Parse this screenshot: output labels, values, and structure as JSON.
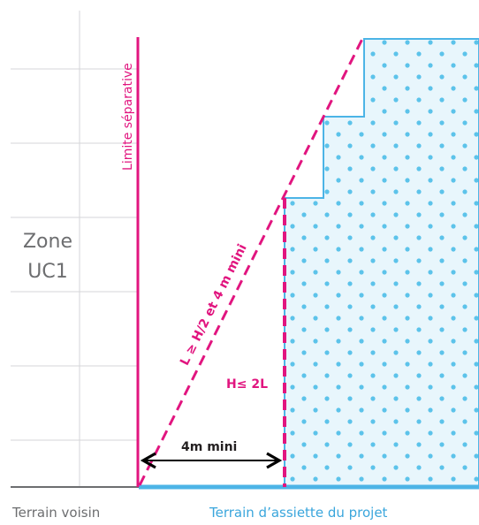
{
  "zone": {
    "line1": "Zone",
    "line2": "UC1"
  },
  "labels": {
    "limite_separative": "Limite séparative",
    "rule_l": "L ≥ H/2 et 4 m mini",
    "rule_h": "H≤ 2L",
    "distance": "4m mini",
    "terrain_voisin": "Terrain voisin",
    "terrain_projet": "Terrain d’assiette du projet"
  },
  "colors": {
    "magenta": "#e1157f",
    "blue": "#4cb4e6",
    "dot": "#5cc3ea",
    "fill": "#e8f6fc",
    "grid": "#d4d6d8",
    "ground": "#6d6e70",
    "text_gray": "#6d6e70",
    "text_black": "#231f20"
  }
}
